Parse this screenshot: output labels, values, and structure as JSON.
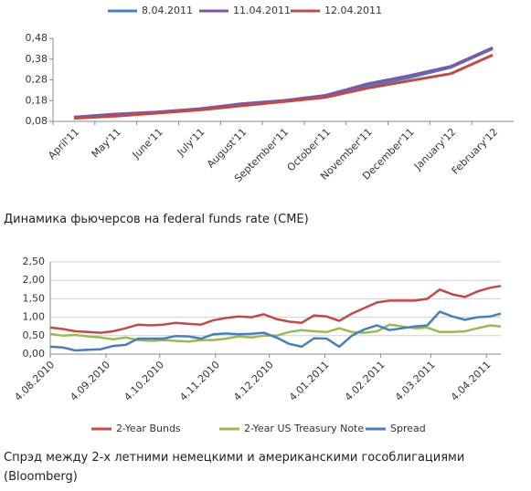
{
  "chart_data": [
    {
      "type": "line",
      "caption": "Динамика фьючерсов на federal funds rate (CME)",
      "categories": [
        "April'11",
        "May'11",
        "June'11",
        "July'11",
        "August'11",
        "September'11",
        "October'11",
        "November'11",
        "December'11",
        "January'12",
        "February'12"
      ],
      "series": [
        {
          "name": "8.04.2011",
          "color": "#4a7ebb",
          "values": [
            0.1,
            0.115,
            0.125,
            0.14,
            0.165,
            0.18,
            0.205,
            0.25,
            0.29,
            0.34,
            0.43
          ]
        },
        {
          "name": "11.04.2011",
          "color": "#7e57a8",
          "values": [
            0.1,
            0.115,
            0.125,
            0.14,
            0.165,
            0.18,
            0.205,
            0.26,
            0.3,
            0.345,
            0.435
          ]
        },
        {
          "name": "12.04.2011",
          "color": "#be4b48",
          "values": [
            0.095,
            0.105,
            0.12,
            0.135,
            0.155,
            0.175,
            0.195,
            0.24,
            0.275,
            0.31,
            0.4
          ]
        }
      ],
      "ylim": [
        0.08,
        0.48
      ],
      "yticks": [
        {
          "value": 0.08,
          "label": "0,08"
        },
        {
          "value": 0.18,
          "label": "0,18"
        },
        {
          "value": 0.28,
          "label": "0,28"
        },
        {
          "value": 0.38,
          "label": "0,38"
        },
        {
          "value": 0.48,
          "label": "0,48"
        }
      ],
      "grid": false,
      "legend": "top"
    },
    {
      "type": "line",
      "caption": "Спрэд между 2-х летними немецкими и американскими гособлигациями (Bloomberg)",
      "x": [
        "2010-08-04",
        "2010-08-11",
        "2010-08-18",
        "2010-08-25",
        "2010-09-01",
        "2010-09-08",
        "2010-09-15",
        "2010-09-22",
        "2010-09-29",
        "2010-10-06",
        "2010-10-13",
        "2010-10-20",
        "2010-10-27",
        "2010-11-03",
        "2010-11-10",
        "2010-11-17",
        "2010-11-24",
        "2010-12-01",
        "2010-12-08",
        "2010-12-15",
        "2010-12-22",
        "2010-12-29",
        "2011-01-05",
        "2011-01-12",
        "2011-01-19",
        "2011-01-26",
        "2011-02-02",
        "2011-02-09",
        "2011-02-16",
        "2011-02-23",
        "2011-03-02",
        "2011-03-09",
        "2011-03-16",
        "2011-03-23",
        "2011-03-30",
        "2011-04-06",
        "2011-04-12"
      ],
      "series": [
        {
          "name": "2-Year Bunds",
          "color": "#be4b48",
          "values": [
            0.72,
            0.68,
            0.62,
            0.6,
            0.58,
            0.62,
            0.7,
            0.8,
            0.78,
            0.8,
            0.85,
            0.82,
            0.8,
            0.92,
            0.98,
            1.02,
            1.0,
            1.08,
            0.95,
            0.88,
            0.85,
            1.05,
            1.02,
            0.9,
            1.1,
            1.25,
            1.4,
            1.45,
            1.45,
            1.45,
            1.5,
            1.75,
            1.62,
            1.55,
            1.7,
            1.8,
            1.85
          ]
        },
        {
          "name": "2-Year US Treasury Note",
          "color": "#98b954",
          "values": [
            0.55,
            0.5,
            0.52,
            0.48,
            0.45,
            0.4,
            0.45,
            0.38,
            0.36,
            0.38,
            0.36,
            0.34,
            0.38,
            0.38,
            0.42,
            0.48,
            0.45,
            0.5,
            0.5,
            0.6,
            0.65,
            0.62,
            0.6,
            0.7,
            0.6,
            0.58,
            0.62,
            0.8,
            0.75,
            0.7,
            0.72,
            0.6,
            0.6,
            0.62,
            0.7,
            0.78,
            0.75
          ]
        },
        {
          "name": "Spread",
          "color": "#4a7ebb",
          "values": [
            0.2,
            0.18,
            0.1,
            0.12,
            0.13,
            0.22,
            0.25,
            0.42,
            0.42,
            0.42,
            0.49,
            0.48,
            0.42,
            0.54,
            0.56,
            0.54,
            0.55,
            0.58,
            0.45,
            0.28,
            0.2,
            0.43,
            0.42,
            0.2,
            0.5,
            0.67,
            0.78,
            0.65,
            0.7,
            0.75,
            0.78,
            1.15,
            1.02,
            0.93,
            1.0,
            1.02,
            1.1
          ]
        }
      ],
      "xlim": [
        "2010-08-04",
        "2011-04-12"
      ],
      "xticks": [
        {
          "value": "2010-08-04",
          "label": "4.08.2010"
        },
        {
          "value": "2010-09-04",
          "label": "4.09.2010"
        },
        {
          "value": "2010-10-04",
          "label": "4.10.2010"
        },
        {
          "value": "2010-11-04",
          "label": "4.11.2010"
        },
        {
          "value": "2010-12-04",
          "label": "4.12.2010"
        },
        {
          "value": "2011-01-04",
          "label": "4.01.2011"
        },
        {
          "value": "2011-02-04",
          "label": "4.02.2011"
        },
        {
          "value": "2011-03-04",
          "label": "4.03.2011"
        },
        {
          "value": "2011-04-04",
          "label": "4.04.2011"
        }
      ],
      "ylim": [
        0,
        2.5
      ],
      "yticks": [
        {
          "value": 0,
          "label": "0,00"
        },
        {
          "value": 0.5,
          "label": "0,50"
        },
        {
          "value": 1,
          "label": "1,00"
        },
        {
          "value": 1.5,
          "label": "1,50"
        },
        {
          "value": 2,
          "label": "2,00"
        },
        {
          "value": 2.5,
          "label": "2,50"
        }
      ],
      "grid": true,
      "legend": "bottom"
    }
  ]
}
